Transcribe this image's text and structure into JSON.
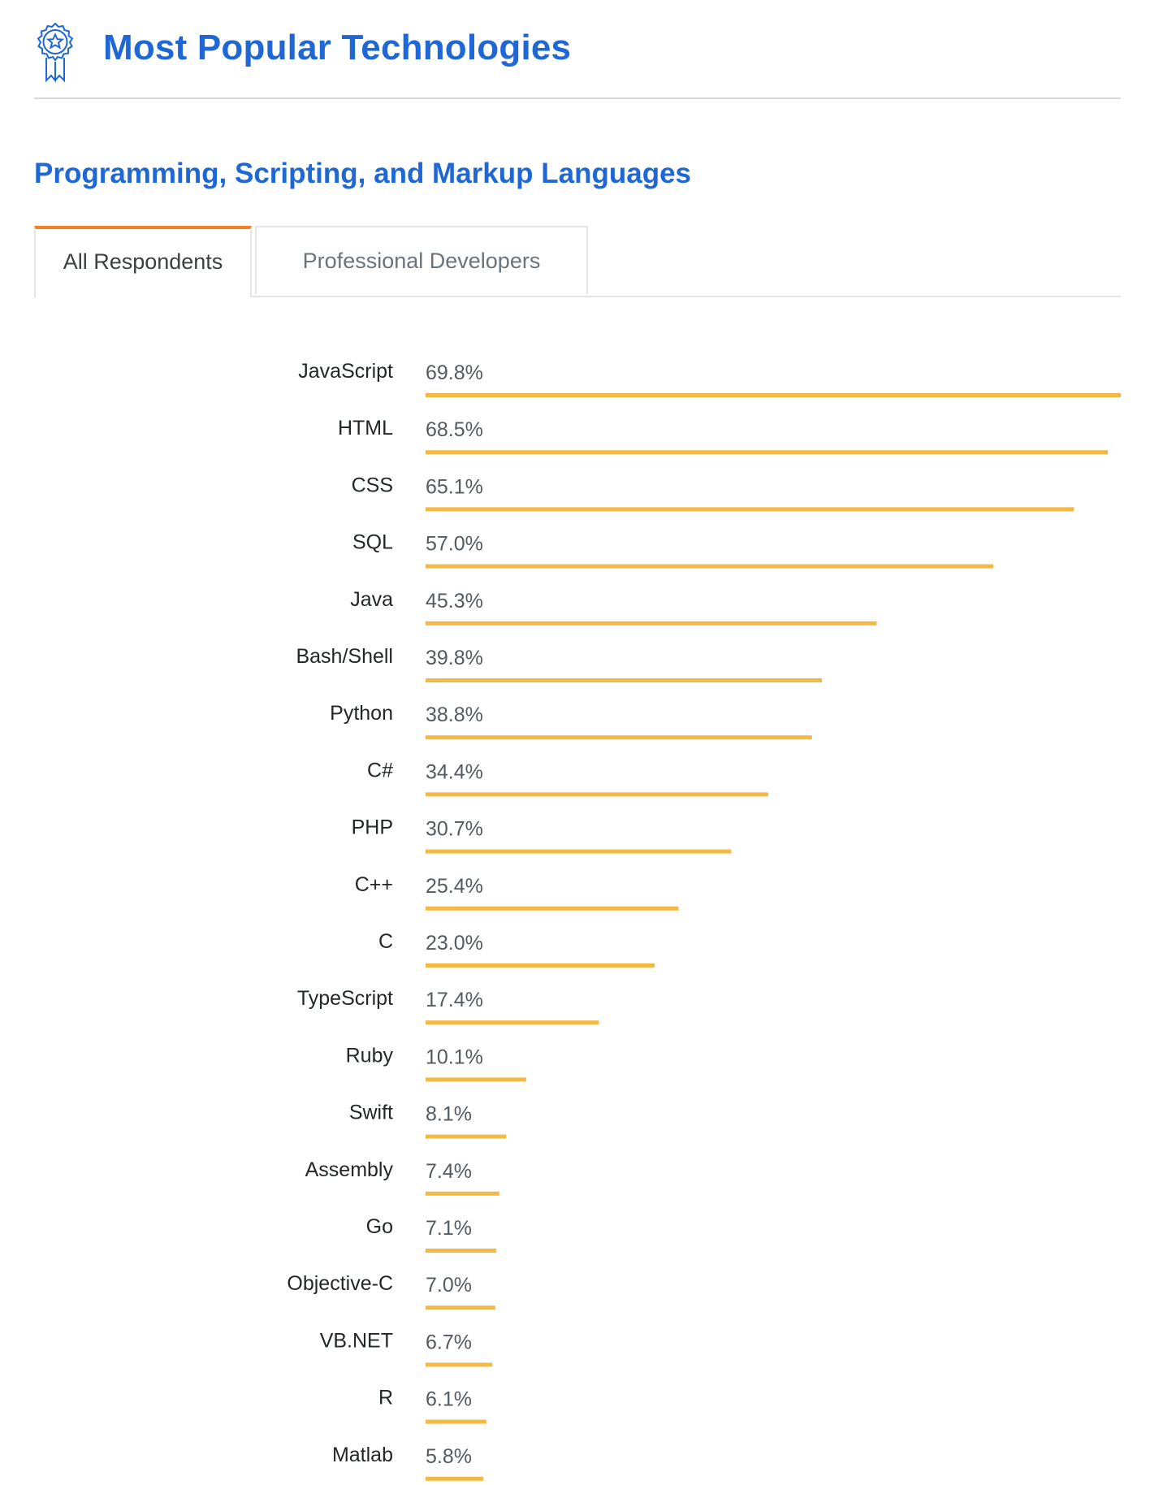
{
  "header": {
    "title": "Most Popular Technologies",
    "icon": "award-ribbon-icon"
  },
  "section": {
    "title": "Programming, Scripting, and Markup Languages"
  },
  "tabs": [
    {
      "label": "All Respondents",
      "active": true
    },
    {
      "label": "Professional Developers",
      "active": false
    }
  ],
  "colors": {
    "accent": "#1e67d4",
    "bar": "#f4b944",
    "tab_highlight": "#f48024"
  },
  "chart_data": {
    "type": "bar",
    "orientation": "horizontal",
    "title": "Programming, Scripting, and Markup Languages",
    "xlabel": "",
    "ylabel": "",
    "unit": "%",
    "xlim": [
      0,
      69.8
    ],
    "grid": false,
    "legend": "none",
    "categories": [
      "JavaScript",
      "HTML",
      "CSS",
      "SQL",
      "Java",
      "Bash/Shell",
      "Python",
      "C#",
      "PHP",
      "C++",
      "C",
      "TypeScript",
      "Ruby",
      "Swift",
      "Assembly",
      "Go",
      "Objective-C",
      "VB.NET",
      "R",
      "Matlab"
    ],
    "values": [
      69.8,
      68.5,
      65.1,
      57.0,
      45.3,
      39.8,
      38.8,
      34.4,
      30.7,
      25.4,
      23.0,
      17.4,
      10.1,
      8.1,
      7.4,
      7.1,
      7.0,
      6.7,
      6.1,
      5.8
    ],
    "labels": [
      "69.8%",
      "68.5%",
      "65.1%",
      "57.0%",
      "45.3%",
      "39.8%",
      "38.8%",
      "34.4%",
      "30.7%",
      "25.4%",
      "23.0%",
      "17.4%",
      "10.1%",
      "8.1%",
      "7.4%",
      "7.1%",
      "7.0%",
      "6.7%",
      "6.1%",
      "5.8%"
    ]
  }
}
